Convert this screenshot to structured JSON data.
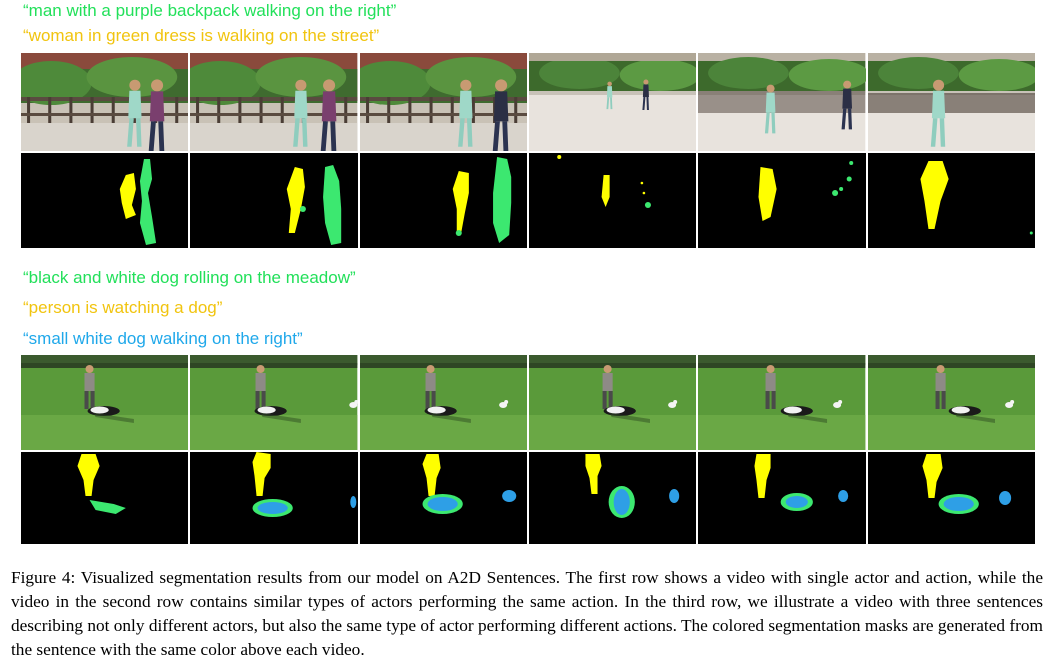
{
  "row1": {
    "sentences": [
      {
        "text": "“man with a purple backpack walking on the right”",
        "color": "#22e05a"
      },
      {
        "text": "“woman in green dress is walking on the street”",
        "color": "#f1c40f"
      }
    ],
    "frames": 6
  },
  "row2": {
    "sentences": [
      {
        "text": "“black and white dog rolling on the meadow”",
        "color": "#22e05a"
      },
      {
        "text": "“person is watching a dog”",
        "color": "#f1c40f"
      },
      {
        "text": "“small white dog walking on the right”",
        "color": "#1fa8ea"
      }
    ],
    "frames": 6
  },
  "mask_colors": {
    "yellow": "#ffff00",
    "green": "#3ce870",
    "blue": "#2e9fe6",
    "background": "#000000"
  },
  "caption": "Figure 4: Visualized segmentation results from our model on A2D Sentences. The first row shows a video with single actor and action, while the video in the second row contains similar types of actors performing the same action. In the third row, we illustrate a video with three sentences describing not only different actors, but also the same type of actor performing different actions. The colored segmentation masks are generated from the sentence with the same color above each video."
}
